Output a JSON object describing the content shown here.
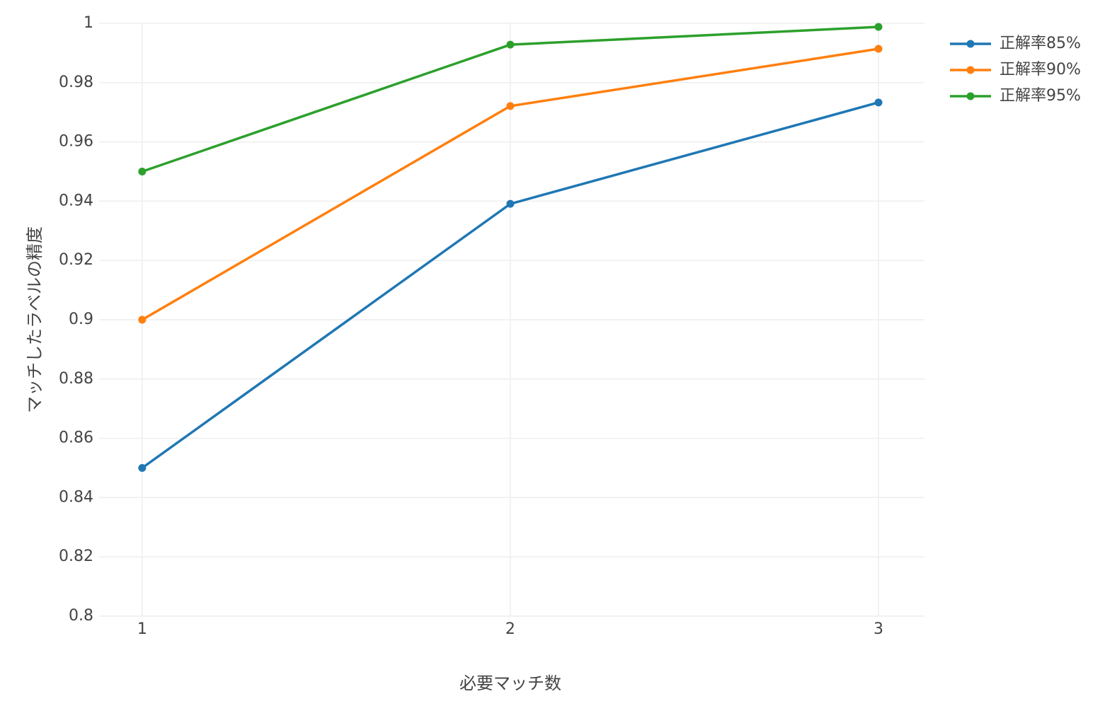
{
  "chart_data": {
    "type": "line",
    "x_label": "必要マッチ数",
    "y_label": "マッチしたラベルの精度",
    "x": [
      1,
      2,
      3
    ],
    "series": [
      {
        "name": "正解率85%",
        "color": "#1f77b4",
        "values": [
          0.85,
          0.9391,
          0.9733
        ]
      },
      {
        "name": "正解率90%",
        "color": "#ff7f0e",
        "values": [
          0.9,
          0.9721,
          0.9914
        ]
      },
      {
        "name": "正解率95%",
        "color": "#2ca02c",
        "values": [
          0.95,
          0.9928,
          0.9988
        ]
      }
    ],
    "xlim": [
      0.883,
      3.125
    ],
    "xticks": [
      1,
      2,
      3
    ],
    "ylim": [
      0.8,
      1
    ],
    "yticks": [
      0.8,
      0.82,
      0.84,
      0.86,
      0.88,
      0.9,
      0.92,
      0.94,
      0.96,
      0.98,
      1
    ],
    "grid": true,
    "legend": "top-right"
  }
}
